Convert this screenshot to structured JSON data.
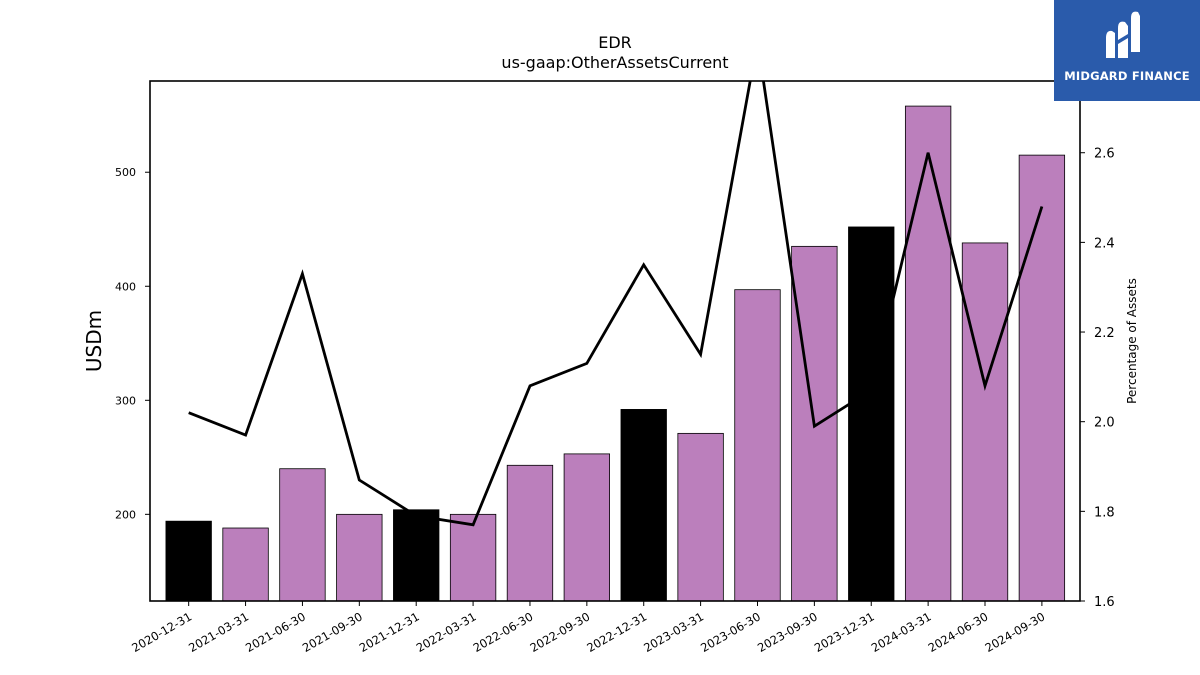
{
  "chart_data": {
    "type": "bar",
    "title": "EDR",
    "subtitle": "us-gaap:OtherAssetsCurrent",
    "ylabel": "USDm",
    "y2label": "Percentage of Assets",
    "categories": [
      "2020-12-31",
      "2021-03-31",
      "2021-06-30",
      "2021-09-30",
      "2021-12-31",
      "2022-03-31",
      "2022-06-30",
      "2022-09-30",
      "2022-12-31",
      "2023-03-31",
      "2023-06-30",
      "2023-09-30",
      "2023-12-31",
      "2024-03-31",
      "2024-06-30",
      "2024-09-30"
    ],
    "series": [
      {
        "type": "bar",
        "axis": "left",
        "values": [
          194,
          188,
          240,
          200,
          204,
          200,
          243,
          253,
          292,
          271,
          397,
          435,
          452,
          558,
          438,
          515
        ],
        "colors": [
          "#000000",
          "#bb7fbc",
          "#bb7fbc",
          "#bb7fbc",
          "#000000",
          "#bb7fbc",
          "#bb7fbc",
          "#bb7fbc",
          "#000000",
          "#bb7fbc",
          "#bb7fbc",
          "#bb7fbc",
          "#000000",
          "#bb7fbc",
          "#bb7fbc",
          "#bb7fbc"
        ]
      },
      {
        "type": "line",
        "axis": "right",
        "color": "#000000",
        "values": [
          2.02,
          1.97,
          2.33,
          1.87,
          1.79,
          1.77,
          2.08,
          2.13,
          2.35,
          2.15,
          2.85,
          1.99,
          2.07,
          2.6,
          2.08,
          2.48
        ]
      }
    ],
    "ylim": [
      124,
      580
    ],
    "yticks": [
      200,
      300,
      400,
      500
    ],
    "y2lim": [
      1.6,
      2.76
    ],
    "y2ticks": [
      "1.6",
      "1.8",
      "2.0",
      "2.2",
      "2.4",
      "2.6"
    ],
    "colors": {
      "highlight": "#000000",
      "bar": "#bb7fbc",
      "line": "#000000"
    }
  },
  "logo": {
    "text": "MIDGARD FINANCE",
    "background": "#2a5bab"
  }
}
